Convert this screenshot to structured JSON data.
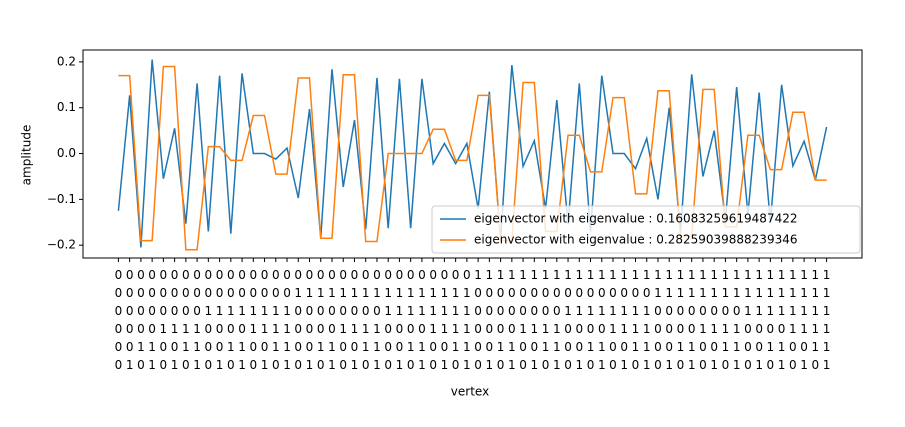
{
  "chart_data": {
    "type": "line",
    "xlabel": "vertex",
    "ylabel": "amplitude",
    "categories": [
      "000000",
      "000001",
      "000010",
      "000011",
      "000100",
      "000101",
      "000110",
      "000111",
      "001000",
      "001001",
      "001010",
      "001011",
      "001100",
      "001101",
      "001110",
      "001111",
      "010000",
      "010001",
      "010010",
      "010011",
      "010100",
      "010101",
      "010110",
      "010111",
      "011000",
      "011001",
      "011010",
      "011011",
      "011100",
      "011101",
      "011110",
      "011111",
      "100000",
      "100001",
      "100010",
      "100011",
      "100100",
      "100101",
      "100110",
      "100111",
      "101000",
      "101001",
      "101010",
      "101011",
      "101100",
      "101101",
      "101110",
      "101111",
      "110000",
      "110001",
      "110010",
      "110011",
      "110100",
      "110101",
      "110110",
      "110111",
      "111000",
      "111001",
      "111010",
      "111011",
      "111100",
      "111101",
      "111110",
      "111111"
    ],
    "series": [
      {
        "name": "eigenvector with eigenvalue : 0.16083259619487422",
        "color": "#1f77b4",
        "values": [
          -0.125,
          0.127,
          -0.205,
          0.205,
          -0.055,
          0.055,
          -0.153,
          0.153,
          -0.17,
          0.17,
          -0.175,
          0.175,
          0.0,
          0.0,
          -0.012,
          0.012,
          -0.097,
          0.097,
          -0.184,
          0.184,
          -0.073,
          0.073,
          -0.165,
          0.165,
          -0.163,
          0.163,
          -0.163,
          0.163,
          -0.022,
          0.022,
          -0.022,
          0.022,
          -0.12,
          0.135,
          -0.19,
          0.193,
          -0.028,
          0.028,
          -0.12,
          0.117,
          -0.155,
          0.153,
          -0.17,
          0.17,
          0.0,
          0.0,
          -0.033,
          0.033,
          -0.1,
          0.1,
          -0.173,
          0.173,
          -0.05,
          0.05,
          -0.145,
          0.145,
          -0.133,
          0.133,
          -0.15,
          0.15,
          -0.027,
          0.027,
          -0.058,
          0.058
        ]
      },
      {
        "name": "eigenvector with eigenvalue : 0.28259039888239346",
        "color": "#ff7f0e",
        "values": [
          0.17,
          0.17,
          -0.19,
          -0.19,
          0.19,
          0.19,
          -0.21,
          -0.21,
          0.015,
          0.015,
          -0.015,
          -0.015,
          0.083,
          0.083,
          -0.045,
          -0.045,
          0.165,
          0.165,
          -0.185,
          -0.185,
          0.172,
          0.172,
          -0.192,
          -0.192,
          0.0,
          0.0,
          0.0,
          0.0,
          0.053,
          0.053,
          -0.015,
          -0.015,
          0.127,
          0.127,
          -0.19,
          -0.19,
          0.155,
          0.155,
          -0.17,
          -0.17,
          0.04,
          0.04,
          -0.04,
          -0.04,
          0.122,
          0.122,
          -0.088,
          -0.088,
          0.137,
          0.137,
          -0.18,
          -0.18,
          0.14,
          0.14,
          -0.16,
          -0.16,
          0.04,
          0.04,
          -0.035,
          -0.035,
          0.09,
          0.09,
          -0.058,
          -0.058
        ]
      }
    ],
    "ylim": [
      -0.228,
      0.226
    ],
    "yticks": [
      {
        "value": -0.2,
        "label": "−0.2"
      },
      {
        "value": -0.1,
        "label": "−0.1"
      },
      {
        "value": 0.0,
        "label": "0.0"
      },
      0.1,
      0.2
    ],
    "legend": "lower right"
  }
}
